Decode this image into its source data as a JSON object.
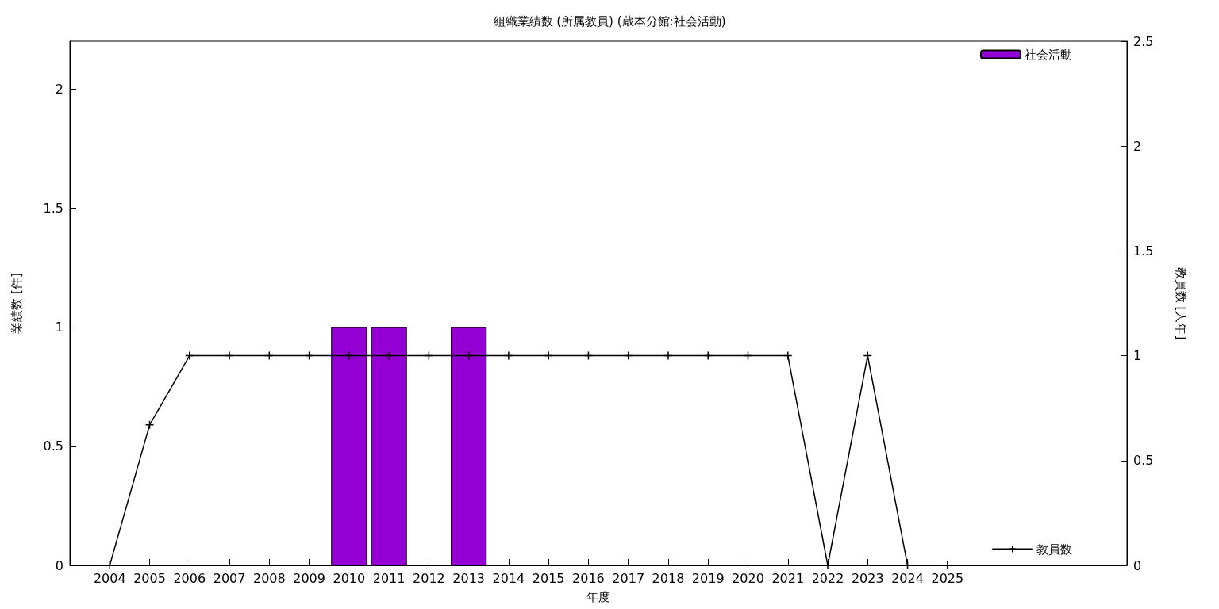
{
  "chart_data": {
    "type": "bar",
    "title": "組織業績数 (所属教員) (蔵本分館:社会活動)",
    "xlabel": "年度",
    "ylabel": "業績数 [件]",
    "y2label": "教員数 [人年]",
    "x": [
      2004,
      2005,
      2006,
      2007,
      2008,
      2009,
      2010,
      2011,
      2012,
      2013,
      2014,
      2015,
      2016,
      2017,
      2018,
      2019,
      2020,
      2021,
      2022,
      2023,
      2024,
      2025
    ],
    "series": [
      {
        "name": "社会活動",
        "color": "#9400d3",
        "values": [
          null,
          null,
          null,
          null,
          null,
          null,
          1,
          1,
          null,
          1,
          null,
          null,
          null,
          null,
          null,
          null,
          null,
          null,
          null,
          null,
          null,
          null
        ]
      },
      {
        "name": "教員数",
        "type": "line",
        "axis": "y2",
        "color": "#000000",
        "marker": "cross",
        "line_style": "solid",
        "values": [
          0,
          0.67,
          1,
          1,
          1,
          1,
          1,
          1,
          1,
          1,
          1,
          1,
          1,
          1,
          1,
          1,
          1,
          1,
          0,
          1,
          0,
          0
        ]
      }
    ],
    "xlim": [
      2003,
      2029.5
    ],
    "xticks": [
      2004,
      2005,
      2006,
      2007,
      2008,
      2009,
      2010,
      2011,
      2012,
      2013,
      2014,
      2015,
      2016,
      2017,
      2018,
      2019,
      2020,
      2021,
      2022,
      2023,
      2024,
      2025
    ],
    "ylim": [
      0,
      2.2
    ],
    "yticks": [
      0,
      0.5,
      1,
      1.5,
      2
    ],
    "y2lim": [
      0,
      2.5
    ],
    "y2ticks": [
      0,
      0.5,
      1,
      1.5,
      2,
      2.5
    ],
    "grid": false,
    "legend": "top right"
  }
}
